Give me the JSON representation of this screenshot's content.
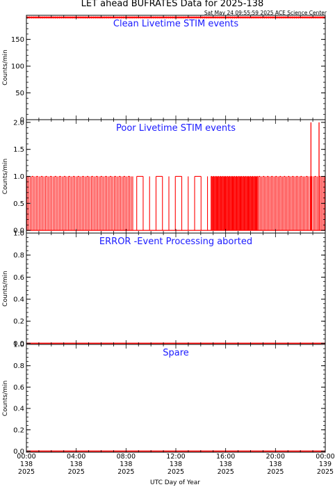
{
  "header": {
    "title": "LET ahead BUFRATES Data for 2025-138",
    "timestamp": "Sat May 24 09:55:59 2025 ACE Science Center"
  },
  "colors": {
    "data_line": "#ff0000",
    "panel_title": "#1a1aff",
    "axes": "#000000"
  },
  "chart_data": [
    {
      "type": "line",
      "title": "Clean Livetime STIM events",
      "ylabel": "Counts/min",
      "ylim": [
        0,
        195
      ],
      "yticks": [
        "0",
        "50",
        "100",
        "150"
      ],
      "xlim": [
        0,
        24
      ],
      "series": [
        {
          "x": [
            0,
            24
          ],
          "y": [
            191,
            191
          ]
        }
      ]
    },
    {
      "type": "line",
      "title": "Poor Livetime STIM events",
      "ylabel": "Counts/min",
      "ylim": [
        -0.05,
        2.05
      ],
      "yticks": [
        "0.0",
        "0.5",
        "1.0",
        "1.5",
        "2.0"
      ],
      "xlim": [
        0,
        24
      ],
      "series": [
        {
          "baseline": 0,
          "segments": [
            {
              "from": 0.0,
              "to": 8.6,
              "level": 1,
              "count": 70
            },
            {
              "from": 8.6,
              "to": 14.8,
              "level": 1,
              "count": 12
            },
            {
              "from": 14.8,
              "to": 18.6,
              "level": 1,
              "count": 62
            },
            {
              "from": 18.6,
              "to": 22.4,
              "level": 1,
              "count": 34
            },
            {
              "from": 22.4,
              "to": 24.0,
              "level": 1,
              "count": 14
            }
          ],
          "spikes": [
            {
              "x": 22.85,
              "y": 2
            },
            {
              "x": 23.5,
              "y": 2
            }
          ]
        }
      ]
    },
    {
      "type": "line",
      "title": "ERROR -Event Processing aborted",
      "ylabel": "Counts/min",
      "ylim": [
        -0.01,
        1.0
      ],
      "yticks": [
        "0.0",
        "0.2",
        "0.4",
        "0.6",
        "0.8",
        "1.0"
      ],
      "xlim": [
        0,
        24
      ],
      "series": [
        {
          "x": [
            0,
            24
          ],
          "y": [
            0,
            0
          ]
        }
      ]
    },
    {
      "type": "line",
      "title": "Spare",
      "ylabel": "Counts/min",
      "ylim": [
        -0.01,
        1.0
      ],
      "yticks": [
        "0.0",
        "0.2",
        "0.4",
        "0.6",
        "0.8",
        "1.0"
      ],
      "xlim": [
        0,
        24
      ],
      "series": [
        {
          "x": [
            0,
            24
          ],
          "y": [
            0,
            0
          ]
        }
      ]
    }
  ],
  "x_axis": {
    "label": "UTC Day of Year",
    "ticks": [
      {
        "hour": 0,
        "lines": [
          "00:00",
          "138",
          "2025"
        ]
      },
      {
        "hour": 4,
        "lines": [
          "04:00",
          "138",
          "2025"
        ]
      },
      {
        "hour": 8,
        "lines": [
          "08:00",
          "138",
          "2025"
        ]
      },
      {
        "hour": 12,
        "lines": [
          "12:00",
          "138",
          "2025"
        ]
      },
      {
        "hour": 16,
        "lines": [
          "16:00",
          "138",
          "2025"
        ]
      },
      {
        "hour": 20,
        "lines": [
          "20:00",
          "138",
          "2025"
        ]
      },
      {
        "hour": 24,
        "lines": [
          "00:00",
          "139",
          "2025"
        ]
      }
    ]
  }
}
